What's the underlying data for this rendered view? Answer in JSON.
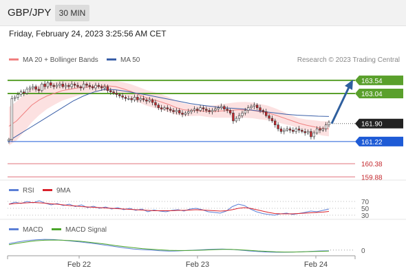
{
  "header": {
    "symbol": "GBP/JPY",
    "timeframe": "30 MIN"
  },
  "date_line": "Friday, February 24, 2023 3:25:56 AM CET",
  "colors": {
    "up_candle": "#ffffff",
    "down_candle": "#c4272d",
    "bollinger_fill": "#fbd7d7",
    "ma20": "#f08080",
    "ma50": "#3a5fa8",
    "resistance": "#5aa02c",
    "support": "#1e5bd6",
    "target_lines": "#e0707a",
    "arrow": "#2f5f9e",
    "rsi": "#5b7fd6",
    "rsi_ma": "#d9202a",
    "macd": "#5b7fd6",
    "macd_signal": "#4aa52a"
  },
  "chart_data": [
    {
      "type": "candlestick",
      "title": "GBP/JPY 30 MIN",
      "legend": [
        {
          "name": "MA 20 + Bollinger Bands",
          "color": "#f08080"
        },
        {
          "name": "MA 50",
          "color": "#3a5fa8"
        }
      ],
      "watermark": "Research © 2023 Trading Central",
      "x_ticks": [
        "Feb 22",
        "Feb 23",
        "Feb 24"
      ],
      "y_range": [
        159.6,
        163.9
      ],
      "current_price": 161.9,
      "levels": [
        {
          "label": "163.54",
          "value": 163.54,
          "kind": "resistance"
        },
        {
          "label": "163.04",
          "value": 163.04,
          "kind": "resistance"
        },
        {
          "label": "161.22",
          "value": 161.22,
          "kind": "support"
        },
        {
          "label": "160.38",
          "value": 160.38,
          "kind": "target"
        },
        {
          "label": "159.88",
          "value": 159.88,
          "kind": "target"
        }
      ],
      "close_series": [
        161.3,
        162.85,
        162.9,
        163.0,
        163.1,
        163.05,
        163.2,
        163.25,
        163.3,
        163.2,
        163.15,
        163.4,
        163.3,
        163.45,
        163.35,
        163.3,
        163.35,
        163.4,
        163.3,
        163.35,
        163.3,
        163.4,
        163.35,
        163.3,
        163.25,
        163.4,
        163.35,
        163.3,
        163.25,
        163.35,
        163.3,
        163.25,
        163.3,
        163.15,
        163.1,
        163.05,
        163.0,
        162.95,
        162.9,
        162.85,
        162.85,
        162.8,
        162.9,
        162.8,
        162.85,
        162.8,
        162.75,
        162.8,
        162.7,
        162.6,
        162.5,
        162.45,
        162.5,
        162.45,
        162.4,
        162.35,
        162.4,
        162.3,
        162.25,
        162.3,
        162.35,
        162.4,
        162.45,
        162.4,
        162.5,
        162.45,
        162.4,
        162.35,
        162.4,
        162.45,
        162.5,
        162.55,
        162.45,
        162.4,
        162.3,
        162.0,
        162.1,
        162.2,
        162.3,
        162.4,
        162.5,
        162.55,
        162.6,
        162.5,
        162.4,
        162.35,
        162.2,
        162.1,
        162.0,
        161.85,
        161.7,
        161.6,
        161.65,
        161.7,
        161.65,
        161.6,
        161.7,
        161.65,
        161.6,
        161.55,
        161.6,
        161.4,
        161.55,
        161.7,
        161.65,
        161.7,
        161.85,
        161.95
      ],
      "ma20_series": [
        161.8,
        162.0,
        162.3,
        162.6,
        162.8,
        162.95,
        163.05,
        163.15,
        163.2,
        163.25,
        163.28,
        163.3,
        163.32,
        163.33,
        163.3,
        163.22,
        163.12,
        163.0,
        162.88,
        162.8,
        162.72,
        162.62,
        162.5,
        162.42,
        162.4,
        162.38,
        162.36,
        162.36,
        162.38,
        162.4,
        162.42,
        162.42,
        162.4,
        162.35,
        162.3,
        162.22,
        162.12,
        162.02,
        161.92,
        161.84,
        161.78,
        161.72,
        161.7
      ],
      "ma50_series": [
        161.25,
        161.5,
        161.75,
        162.0,
        162.25,
        162.5,
        162.75,
        162.95,
        163.1,
        163.2,
        163.18,
        163.12,
        163.05,
        162.98,
        162.9,
        162.82,
        162.74,
        162.66,
        162.6,
        162.55,
        162.5,
        162.48,
        162.45,
        162.4,
        162.35,
        162.3,
        162.25,
        162.22,
        162.2,
        162.18,
        162.17
      ],
      "arrow": {
        "from": [
          161.9
        ],
        "to": [
          163.54
        ]
      }
    },
    {
      "type": "line",
      "title": "RSI",
      "legend": [
        {
          "name": "RSI",
          "color": "#5b7fd6"
        },
        {
          "name": "9MA",
          "color": "#d9202a"
        }
      ],
      "y_ticks": [
        "70",
        "50",
        "30"
      ],
      "ylim": [
        20,
        80
      ],
      "series": [
        {
          "name": "RSI",
          "values": [
            62,
            68,
            64,
            70,
            66,
            72,
            65,
            60,
            64,
            58,
            62,
            55,
            60,
            52,
            56,
            50,
            54,
            48,
            52,
            46,
            50,
            44,
            48,
            40,
            45,
            42,
            40,
            44,
            46,
            42,
            48,
            50,
            46,
            40,
            38,
            36,
            42,
            55,
            62,
            58,
            48,
            40,
            35,
            32,
            30,
            34,
            36,
            32,
            35,
            38,
            42,
            40,
            44,
            48
          ]
        },
        {
          "name": "9MA",
          "values": [
            62,
            64,
            65,
            66,
            67,
            66,
            65,
            63,
            62,
            60,
            58,
            57,
            55,
            54,
            53,
            52,
            51,
            50,
            49,
            48,
            47,
            46,
            45,
            44,
            43,
            43,
            43,
            43,
            44,
            44,
            45,
            46,
            45,
            44,
            43,
            42,
            43,
            46,
            50,
            52,
            50,
            46,
            42,
            38,
            35,
            34,
            34,
            34,
            35,
            36,
            37,
            38,
            39,
            41
          ]
        }
      ]
    },
    {
      "type": "line",
      "title": "MACD",
      "legend": [
        {
          "name": "MACD",
          "color": "#5b7fd6"
        },
        {
          "name": "MACD Signal",
          "color": "#4aa52a"
        }
      ],
      "y_ticks": [
        "0"
      ],
      "ylim": [
        -0.2,
        0.6
      ],
      "series": [
        {
          "name": "MACD",
          "values": [
            0.3,
            0.38,
            0.44,
            0.48,
            0.5,
            0.49,
            0.46,
            0.42,
            0.38,
            0.33,
            0.28,
            0.22,
            0.16,
            0.1,
            0.05,
            0.02,
            0.0,
            -0.03,
            -0.05,
            -0.04,
            -0.02,
            0.0,
            0.02,
            0.04,
            0.05,
            0.03,
            0.0,
            -0.04,
            -0.07,
            -0.09,
            -0.1,
            -0.1,
            -0.09,
            -0.08,
            -0.06,
            -0.04,
            -0.03
          ]
        },
        {
          "name": "MACD Signal",
          "values": [
            0.25,
            0.32,
            0.38,
            0.43,
            0.46,
            0.47,
            0.46,
            0.44,
            0.41,
            0.37,
            0.32,
            0.27,
            0.21,
            0.16,
            0.11,
            0.07,
            0.04,
            0.01,
            -0.01,
            -0.02,
            -0.02,
            -0.01,
            0.0,
            0.02,
            0.03,
            0.03,
            0.01,
            -0.01,
            -0.04,
            -0.06,
            -0.08,
            -0.09,
            -0.09,
            -0.08,
            -0.07,
            -0.06,
            -0.05
          ]
        }
      ]
    }
  ]
}
